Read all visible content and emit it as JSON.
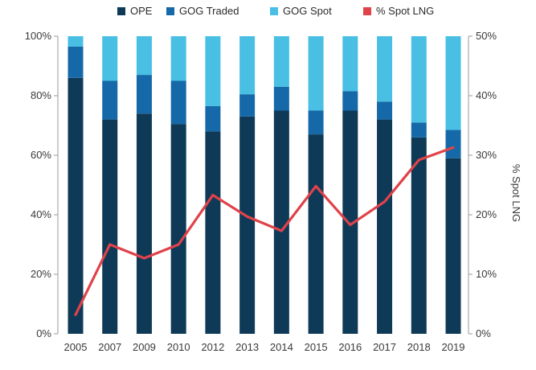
{
  "chart_data": {
    "type": "bar",
    "stacked": true,
    "categories": [
      "2005",
      "2007",
      "2009",
      "2010",
      "2012",
      "2013",
      "2014",
      "2015",
      "2016",
      "2017",
      "2018",
      "2019"
    ],
    "series": [
      {
        "name": "OPE",
        "type": "bar",
        "axis": "left",
        "color": "#0e3a57",
        "values": [
          86,
          72,
          74,
          70.5,
          68,
          73,
          75,
          67,
          75,
          72,
          66,
          59
        ]
      },
      {
        "name": "GOG Traded",
        "type": "bar",
        "axis": "left",
        "color": "#1669a8",
        "values": [
          10.5,
          13,
          13,
          14.5,
          8.5,
          7.5,
          8,
          8,
          6.5,
          6,
          5,
          9.5
        ]
      },
      {
        "name": "GOG Spot",
        "type": "bar",
        "axis": "left",
        "color": "#48bfe3",
        "values": [
          3.5,
          15,
          13,
          15,
          23.5,
          19.5,
          17,
          25,
          18.5,
          22,
          29,
          31.5
        ]
      },
      {
        "name": "% Spot LNG",
        "type": "line",
        "axis": "right",
        "color": "#e0424a",
        "values": [
          3.2,
          15,
          12.7,
          15,
          23.3,
          19.7,
          17.3,
          24.8,
          18.3,
          22.2,
          29.2,
          31.3
        ]
      }
    ],
    "ylim_left": [
      0,
      100
    ],
    "ylim_right": [
      0,
      50
    ],
    "yticks_left": [
      "0%",
      "20%",
      "40%",
      "60%",
      "80%",
      "100%"
    ],
    "yticks_right": [
      "0%",
      "10%",
      "20%",
      "30%",
      "40%",
      "50%"
    ],
    "ylabel_right": "% Spot LNG",
    "xlabel": "",
    "ylabel": "",
    "legend_position": "top",
    "grid": false
  }
}
